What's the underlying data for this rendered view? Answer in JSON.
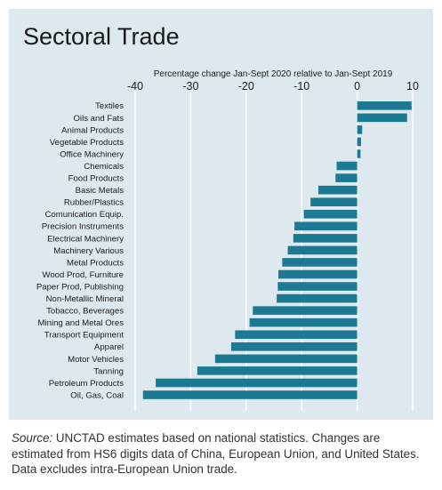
{
  "chart_data": {
    "type": "bar",
    "orientation": "horizontal",
    "title": "Sectoral Trade",
    "xlabel": "Percentage change Jan-Sept 2020 relative to Jan-Sept 2019",
    "xlim": [
      -40,
      10
    ],
    "xticks": [
      -40,
      -30,
      -20,
      -10,
      0,
      10
    ],
    "grid": true,
    "bar_color": "#1b7a92",
    "categories": [
      "Textiles",
      "Oils and Fats",
      "Animal Products",
      "Vegetable Products",
      "Office Machinery",
      "Chemicals",
      "Food Products",
      "Basic Metals",
      "Rubber/Plastics",
      "Comunication Equip.",
      "Precision Instruments",
      "Electrical Machinery",
      "Machinery Various",
      "Metal Products",
      "Wood Prod, Furniture",
      "Paper Prod, Publishing",
      "Non-Metallic Mineral",
      "Tobacco, Beverages",
      "Mining and Metal Ores",
      "Transport Equipment",
      "Apparel",
      "Motor Vehicles",
      "Tanning",
      "Petroleum Products",
      "Oil, Gas, Coal"
    ],
    "values": [
      9.8,
      9.0,
      0.9,
      0.7,
      0.6,
      -3.7,
      -3.9,
      -7.0,
      -8.4,
      -9.6,
      -11.3,
      -11.5,
      -12.5,
      -13.5,
      -14.2,
      -14.3,
      -14.5,
      -18.8,
      -19.4,
      -22.0,
      -22.7,
      -25.6,
      -28.8,
      -36.3,
      -38.6
    ]
  },
  "source": {
    "label": "Source:",
    "text": " UNCTAD estimates based on national statistics. Changes are estimated from HS6 digits data of China, European Union, and United States. Data excludes intra-European Union trade."
  }
}
